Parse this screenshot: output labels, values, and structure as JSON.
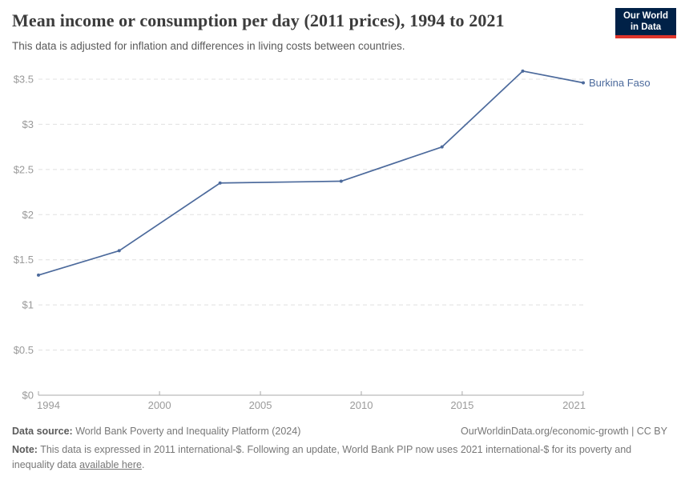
{
  "header": {
    "title": "Mean income or consumption per day (2011 prices), 1994 to 2021",
    "subtitle": "This data is adjusted for inflation and differences in living costs between countries.",
    "logo": {
      "line1": "Our World",
      "line2": "in Data"
    }
  },
  "colors": {
    "line": "#4c6a9c",
    "logo_bg": "#002147",
    "logo_red": "#e0352b",
    "axis_text": "#9a9a9a",
    "axis_line": "#a8a8a8",
    "grid": "#e0e0e0"
  },
  "chart_data": {
    "type": "line",
    "title": "Mean income or consumption per day (2011 prices), 1994 to 2021",
    "xlabel": "",
    "ylabel": "",
    "xlim": [
      1994,
      2021
    ],
    "ylim": [
      0,
      3.5
    ],
    "x_ticks": [
      1994,
      2000,
      2005,
      2010,
      2015,
      2021
    ],
    "y_ticks": [
      0,
      0.5,
      1,
      1.5,
      2,
      2.5,
      3,
      3.5
    ],
    "y_tick_labels": [
      "$0",
      "$0.5",
      "$1",
      "$1.5",
      "$2",
      "$2.5",
      "$3",
      "$3.5"
    ],
    "grid": "horizontal-dashed",
    "legend_position": "end-of-line-label",
    "series": [
      {
        "name": "Burkina Faso",
        "x": [
          1994,
          1998,
          2003,
          2009,
          2014,
          2018,
          2021
        ],
        "values": [
          1.33,
          1.6,
          2.35,
          2.37,
          2.75,
          3.59,
          3.46
        ],
        "color": "#4c6a9c"
      }
    ]
  },
  "footer": {
    "source_label": "Data source:",
    "source_text": "World Bank Poverty and Inequality Platform (2024)",
    "credit": "OurWorldinData.org/economic-growth | CC BY",
    "note_label": "Note:",
    "note_text": "This data is expressed in 2011 international-$. Following an update, World Bank PIP now uses 2021 international-$ for its poverty and inequality data",
    "note_link": "available here",
    "note_end": "."
  }
}
